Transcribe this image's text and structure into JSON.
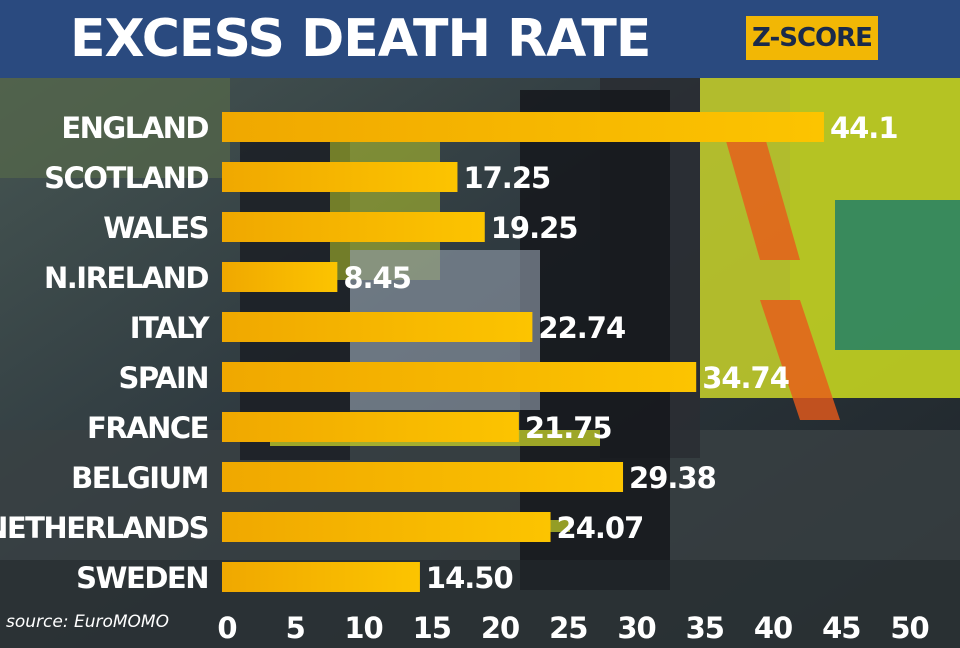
{
  "header": {
    "title": "EXCESS DEATH RATE",
    "badge": "Z-SCORE"
  },
  "source": "source: EuroMOMO",
  "colors": {
    "header_bg": "#2a4a7f",
    "bar": "#f5b800",
    "badge": "#f2b705",
    "text": "#ffffff"
  },
  "chart_data": {
    "type": "bar",
    "orientation": "horizontal",
    "title": "EXCESS DEATH RATE",
    "categories": [
      "ENGLAND",
      "SCOTLAND",
      "WALES",
      "N.IRELAND",
      "ITALY",
      "SPAIN",
      "FRANCE",
      "BELGIUM",
      "NETHERLANDS",
      "SWEDEN"
    ],
    "values": [
      44.1,
      17.25,
      19.25,
      8.45,
      22.74,
      34.74,
      21.75,
      29.38,
      24.07,
      14.5
    ],
    "value_labels": [
      "44.1",
      "17.25",
      "19.25",
      "8.45",
      "22.74",
      "34.74",
      "21.75",
      "29.38",
      "24.07",
      "14.50"
    ],
    "xlim": [
      0,
      50
    ],
    "xticks": [
      "0",
      "5",
      "10",
      "15",
      "20",
      "25",
      "30",
      "35",
      "40",
      "45",
      "50"
    ],
    "grid": false
  }
}
